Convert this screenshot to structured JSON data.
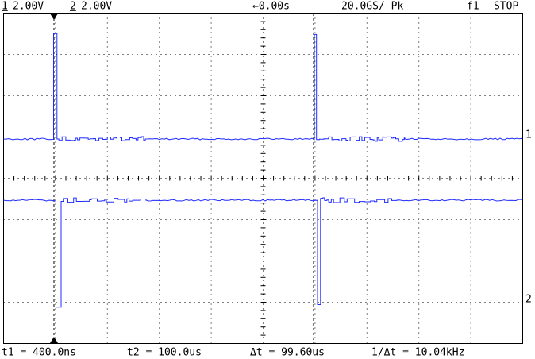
{
  "header": {
    "ch1_label": "1",
    "ch1_scale": "2.00V",
    "ch2_label": "2",
    "ch2_scale": "2.00V",
    "time_offset": "←0.00s",
    "sample_rate": "20.0GS/ Pk",
    "trigger": "f1",
    "status": "STOP"
  },
  "markers": {
    "ch1": "1",
    "ch2": "2"
  },
  "footer": {
    "t1": "t1 = 400.0ns",
    "t2": "t2 = 100.0us",
    "dt": "Δt = 99.60us",
    "inv_dt": "1/Δt = 10.04kHz"
  }
}
